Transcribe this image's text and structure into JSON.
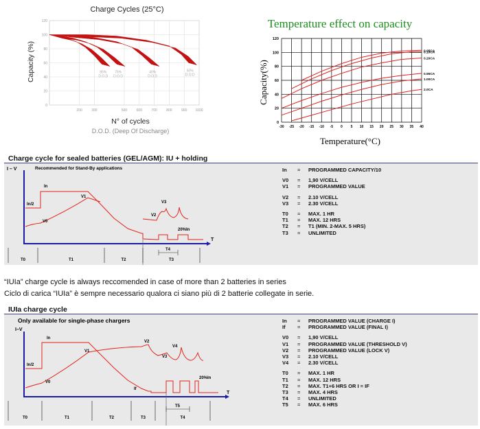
{
  "charge_cycles_chart": {
    "title": "Charge Cycles (25°C)",
    "ylabel": "Capacity (%)",
    "xlabel": "N° of cycles",
    "xlabel2": "D.O.D. (Deep Of Discharge)"
  },
  "temperature_chart": {
    "title": "Temperature effect on capacity",
    "ylabel": "Capacity(%)",
    "xlabel": "Temperature(°C)"
  },
  "panel1": {
    "title": "Charge cycle for sealed batteries (GEL/AGM): IU + holding",
    "subtitle": "Recommended for Stand-By applications",
    "axis_y": "I – V",
    "axis_x": "T",
    "labels": {
      "in": "In",
      "in2": "In/2",
      "v0": "V0",
      "v1": "V1",
      "v2": "V2",
      "v3": "V3",
      "t4": "T4",
      "pct": "20%In"
    },
    "phases": [
      "T0",
      "T1",
      "T2",
      "T3"
    ],
    "definitions": [
      [
        {
          "k": "In",
          "v": "PROGRAMMED CAPACITY/10"
        }
      ],
      [
        {
          "k": "V0",
          "v": "1,90 V/CELL"
        },
        {
          "k": "V1",
          "v": "PROGRAMMED VALUE"
        }
      ],
      [
        {
          "k": "V2",
          "v": "2.10 V/CELL"
        },
        {
          "k": "V3",
          "v": "2.30 V/CELL"
        }
      ],
      [
        {
          "k": "T0",
          "v": "MAX. 1 HR"
        },
        {
          "k": "T1",
          "v": "MAX. 12 HRS"
        },
        {
          "k": "T2",
          "v": "T1 (MIN. 2-MAX. 5 HRS)"
        },
        {
          "k": "T3",
          "v": "UNLIMITED"
        }
      ]
    ]
  },
  "note": {
    "line1": "“IUIa” charge cycle is always reccomended in case of more than 2 batteries in series",
    "line2": "Ciclo di carica “IUIa” è sempre necessario qualora ci siano più di 2 batterie collegate in serie."
  },
  "panel2": {
    "title": "IUIa charge cycle",
    "subtitle": "Only available for single-phase chargers",
    "axis_y": "I–V",
    "axis_x": "T",
    "labels": {
      "in": "In",
      "in2": "In/2",
      "v0": "V0",
      "v1": "V1",
      "v2": "V2",
      "v3": "V3",
      "v4": "V4",
      "if": "If",
      "t5": "T5",
      "pct": "20%In"
    },
    "phases": [
      "T0",
      "T1",
      "T2",
      "T3",
      "T4"
    ],
    "definitions": [
      [
        {
          "k": "In",
          "v": "PROGRAMMED VALUE (CHARGE I)"
        },
        {
          "k": "If",
          "v": "PROGRAMMED VALUE (FINAL I)"
        }
      ],
      [
        {
          "k": "V0",
          "v": "1,90 V/CELL"
        },
        {
          "k": "V1",
          "v": "PROGRAMMED VALUE (THRESHOLD V)"
        },
        {
          "k": "V2",
          "v": "PROGRAMMED VALUE (LOCK V)"
        },
        {
          "k": "V3",
          "v": "2.10 V/CELL"
        },
        {
          "k": "V4",
          "v": "2.30 V/CELL"
        }
      ],
      [
        {
          "k": "T0",
          "v": "MAX. 1 HR"
        },
        {
          "k": "T1",
          "v": "MAX. 12 HRS"
        },
        {
          "k": "T2",
          "v": "MAX. T1+6 HRS OR I = IF"
        },
        {
          "k": "T3",
          "v": "MAX. 4 HRS"
        },
        {
          "k": "T4",
          "v": "UNLIMITED"
        },
        {
          "k": "T5",
          "v": "MAX. 6 HRS"
        }
      ]
    ]
  },
  "chart_data": [
    {
      "type": "area",
      "title": "Charge Cycles (25°C)",
      "xlabel": "N° of cycles",
      "ylabel": "Capacity (%)",
      "xlim": [
        0,
        1000
      ],
      "ylim": [
        0,
        120
      ],
      "x_ticks": [
        200,
        300,
        500,
        600,
        700,
        800,
        900,
        1000
      ],
      "y_ticks": [
        0,
        20,
        40,
        60,
        80,
        100,
        120
      ],
      "series": [
        {
          "name": "95% D.O.D",
          "values": [
            [
              0,
              100
            ],
            [
              60,
              98
            ],
            [
              120,
              95
            ],
            [
              180,
              90
            ],
            [
              240,
              82
            ],
            [
              300,
              70
            ],
            [
              350,
              58
            ]
          ]
        },
        {
          "name": "75% D.O.D",
          "values": [
            [
              0,
              100
            ],
            [
              80,
              98
            ],
            [
              160,
              95
            ],
            [
              240,
              90
            ],
            [
              320,
              82
            ],
            [
              390,
              70
            ],
            [
              450,
              58
            ]
          ]
        },
        {
          "name": "40% D.O.D",
          "values": [
            [
              0,
              100
            ],
            [
              150,
              99
            ],
            [
              300,
              96
            ],
            [
              450,
              90
            ],
            [
              550,
              82
            ],
            [
              620,
              70
            ],
            [
              680,
              58
            ]
          ]
        },
        {
          "name": "50% D.O.D",
          "values": [
            [
              0,
              100
            ],
            [
              250,
              100
            ],
            [
              450,
              98
            ],
            [
              650,
              92
            ],
            [
              800,
              84
            ],
            [
              880,
              72
            ],
            [
              930,
              60
            ]
          ]
        }
      ],
      "color": "#c41212",
      "grid": true
    },
    {
      "type": "line",
      "title": "Temperature effect on capacity",
      "xlabel": "Temperature(°C)",
      "ylabel": "Capacity(%)",
      "xlim": [
        -30,
        40
      ],
      "ylim": [
        0,
        120
      ],
      "x_ticks": [
        -30,
        -25,
        -20,
        -15,
        -10,
        -5,
        0,
        5,
        10,
        15,
        20,
        25,
        30,
        35,
        40
      ],
      "y_ticks": [
        0,
        20,
        40,
        60,
        80,
        100,
        120
      ],
      "series": [
        {
          "name": "0.05CA",
          "x": [
            -20,
            -10,
            0,
            10,
            20,
            30,
            40
          ],
          "y": [
            60,
            73,
            84,
            93,
            99,
            102,
            103
          ]
        },
        {
          "name": "0.10CA",
          "x": [
            -25,
            -15,
            -5,
            5,
            15,
            25,
            35,
            40
          ],
          "y": [
            48,
            62,
            74,
            84,
            92,
            98,
            101,
            101
          ]
        },
        {
          "name": "0.20CA",
          "x": [
            -30,
            -20,
            -10,
            0,
            10,
            20,
            30,
            40
          ],
          "y": [
            34,
            48,
            60,
            70,
            79,
            85,
            90,
            92
          ]
        },
        {
          "name": "0.55CA",
          "x": [
            -30,
            -20,
            -10,
            0,
            10,
            20,
            30,
            40
          ],
          "y": [
            20,
            31,
            41,
            50,
            57,
            63,
            67,
            70
          ]
        },
        {
          "name": "1.00CA",
          "x": [
            -30,
            -20,
            -10,
            0,
            10,
            20,
            30,
            40
          ],
          "y": [
            10,
            20,
            30,
            39,
            47,
            54,
            59,
            62
          ]
        },
        {
          "name": "2.0CA",
          "x": [
            -25,
            -15,
            -5,
            5,
            15,
            25,
            35,
            40
          ],
          "y": [
            2,
            10,
            18,
            26,
            33,
            40,
            45,
            47
          ]
        }
      ],
      "color": "#e0201f",
      "grid": true
    }
  ]
}
